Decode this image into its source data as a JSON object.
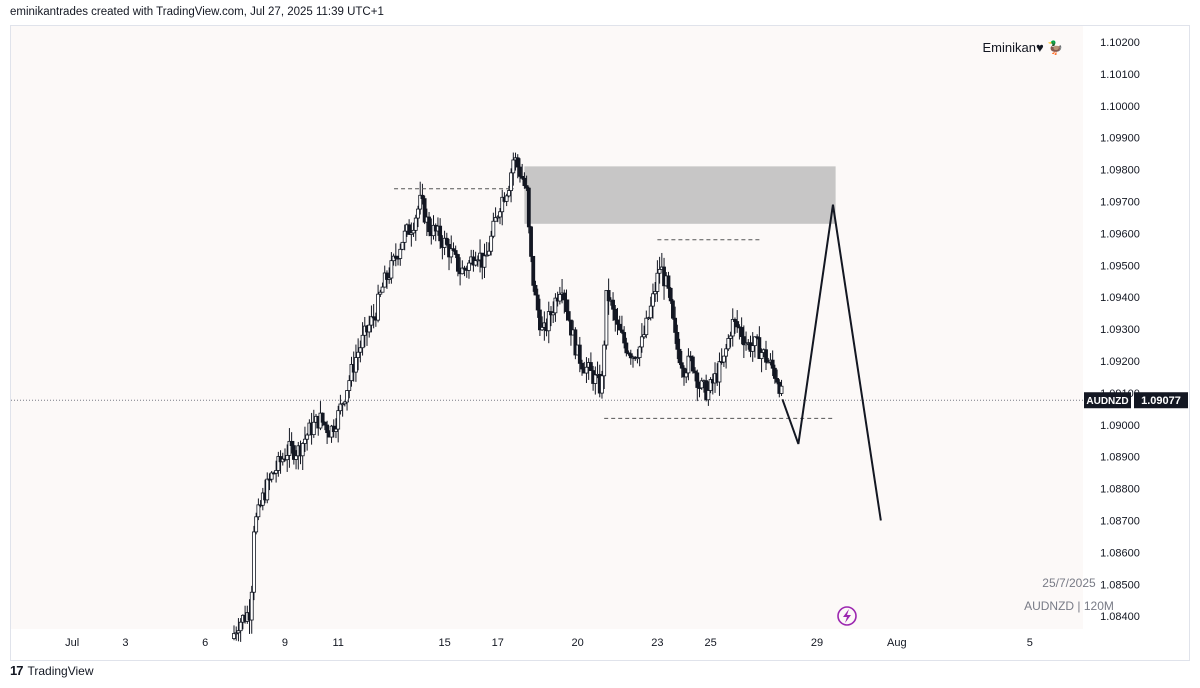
{
  "header": {
    "text": "eminikantrades created with TradingView.com, Jul 27, 2025 11:39 UTC+1"
  },
  "watermark": {
    "author": "Eminikan♥ 🦆"
  },
  "symbol_info": {
    "date": "25/7/2025",
    "symbol": "AUDNZD | 120M"
  },
  "footer": {
    "brand": "TradingView",
    "logo": "17"
  },
  "colors": {
    "background": "#fcf9f8",
    "candle": "#131722",
    "zone": "#bdbdbd",
    "grid_text": "#131722"
  },
  "chart_data": {
    "type": "candlestick",
    "symbol": "AUDNZD",
    "timeframe": "120M",
    "last_price": 1.09077,
    "last_price_label": "1.09077",
    "price_label_partial": "1.09100",
    "ylim": [
      1.0836,
      1.1025
    ],
    "y_ticks": [
      "1.10200",
      "1.10100",
      "1.10000",
      "1.09900",
      "1.09800",
      "1.09700",
      "1.09600",
      "1.09500",
      "1.09400",
      "1.09300",
      "1.09200",
      "1.09000",
      "1.08900",
      "1.08800",
      "1.08700",
      "1.08600",
      "1.08500",
      "1.08400"
    ],
    "x_ticks": [
      {
        "label": "Jul",
        "t": 0
      },
      {
        "label": "3",
        "t": 2
      },
      {
        "label": "6",
        "t": 5
      },
      {
        "label": "9",
        "t": 8
      },
      {
        "label": "11",
        "t": 10
      },
      {
        "label": "15",
        "t": 14
      },
      {
        "label": "17",
        "t": 16
      },
      {
        "label": "20",
        "t": 19
      },
      {
        "label": "23",
        "t": 22
      },
      {
        "label": "25",
        "t": 24
      },
      {
        "label": "29",
        "t": 28
      },
      {
        "label": "Aug",
        "t": 31
      },
      {
        "label": "5",
        "t": 36
      }
    ],
    "x_range": [
      -2.3,
      38
    ],
    "path": [
      [
        6.0,
        1.0833
      ],
      [
        6.25,
        1.0838
      ],
      [
        6.5,
        1.084
      ],
      [
        6.72,
        1.0842
      ],
      [
        6.82,
        1.0868
      ],
      [
        7.0,
        1.0872
      ],
      [
        7.2,
        1.0878
      ],
      [
        7.5,
        1.0884
      ],
      [
        7.8,
        1.0888
      ],
      [
        8.1,
        1.0892
      ],
      [
        8.5,
        1.0892
      ],
      [
        8.9,
        1.0898
      ],
      [
        9.3,
        1.0902
      ],
      [
        9.7,
        1.0898
      ],
      [
        10.0,
        1.0903
      ],
      [
        10.3,
        1.0911
      ],
      [
        10.7,
        1.0922
      ],
      [
        11.0,
        1.0928
      ],
      [
        11.4,
        1.0935
      ],
      [
        11.7,
        1.0944
      ],
      [
        12.0,
        1.0949
      ],
      [
        12.4,
        1.0958
      ],
      [
        12.8,
        1.0963
      ],
      [
        13.1,
        1.097
      ],
      [
        13.4,
        1.0962
      ],
      [
        13.7,
        1.096
      ],
      [
        14.0,
        1.0957
      ],
      [
        14.3,
        1.0953
      ],
      [
        14.6,
        1.0948
      ],
      [
        14.9,
        1.095
      ],
      [
        15.2,
        1.0955
      ],
      [
        15.5,
        1.095
      ],
      [
        15.8,
        1.096
      ],
      [
        16.1,
        1.097
      ],
      [
        16.4,
        1.0975
      ],
      [
        16.6,
        1.0984
      ],
      [
        16.9,
        1.0978
      ],
      [
        17.1,
        1.0972
      ],
      [
        17.2,
        1.0955
      ],
      [
        17.4,
        1.094
      ],
      [
        17.7,
        1.0928
      ],
      [
        18.0,
        1.0935
      ],
      [
        18.4,
        1.0945
      ],
      [
        18.7,
        1.0932
      ],
      [
        19.0,
        1.0922
      ],
      [
        19.3,
        1.0918
      ],
      [
        19.6,
        1.0915
      ],
      [
        19.9,
        1.0911
      ],
      [
        20.1,
        1.0942
      ],
      [
        20.5,
        1.093
      ],
      [
        20.8,
        1.0925
      ],
      [
        21.1,
        1.0922
      ],
      [
        21.4,
        1.0925
      ],
      [
        21.8,
        1.0938
      ],
      [
        22.1,
        1.095
      ],
      [
        22.4,
        1.0942
      ],
      [
        22.7,
        1.0925
      ],
      [
        23.0,
        1.0918
      ],
      [
        23.3,
        1.092
      ],
      [
        23.6,
        1.0912
      ],
      [
        23.9,
        1.091
      ],
      [
        24.2,
        1.0915
      ],
      [
        24.5,
        1.092
      ],
      [
        24.8,
        1.0932
      ],
      [
        25.1,
        1.093
      ],
      [
        25.4,
        1.0925
      ],
      [
        25.7,
        1.0925
      ],
      [
        26.0,
        1.0922
      ],
      [
        26.3,
        1.0918
      ],
      [
        26.55,
        1.0914
      ],
      [
        26.7,
        1.0908
      ]
    ],
    "annotations": {
      "zone": {
        "t0": 17.0,
        "t1": 28.7,
        "p0": 1.0963,
        "p1": 1.0981
      },
      "resistance_line": {
        "t0": 12.1,
        "t1": 16.6,
        "p": 1.0974
      },
      "high_line": {
        "t0": 22.0,
        "t1": 25.9,
        "p": 1.0958
      },
      "support_line": {
        "t0": 20.0,
        "t1": 28.6,
        "p": 1.0902
      },
      "projection": [
        [
          26.7,
          1.0908
        ],
        [
          27.3,
          1.0894
        ],
        [
          28.6,
          1.0969
        ],
        [
          30.4,
          1.087
        ]
      ]
    }
  }
}
